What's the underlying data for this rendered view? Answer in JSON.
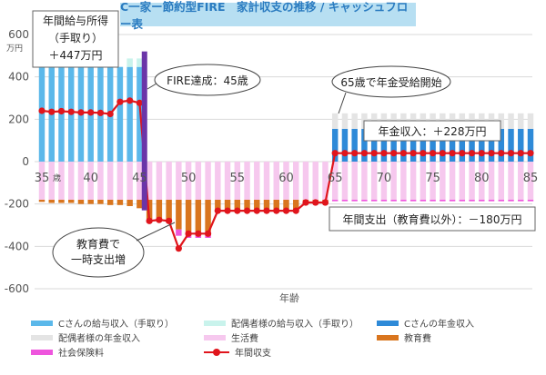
{
  "title": "C一家ー節約型FIRE　家計収支の推移 / キャッシュフロー表",
  "chart_data": {
    "type": "bar",
    "x": [
      35,
      36,
      37,
      38,
      39,
      40,
      41,
      42,
      43,
      44,
      45,
      46,
      47,
      48,
      49,
      50,
      51,
      52,
      53,
      54,
      55,
      56,
      57,
      58,
      59,
      60,
      61,
      62,
      63,
      64,
      65,
      66,
      67,
      68,
      69,
      70,
      71,
      72,
      73,
      74,
      75,
      76,
      77,
      78,
      79,
      80,
      81,
      82,
      83,
      84,
      85
    ],
    "x_ticks": [
      "35",
      "40",
      "45",
      "50",
      "55",
      "60",
      "65",
      "70",
      "75",
      "80",
      "85"
    ],
    "x_unit": "歳",
    "xlabel": "年齢",
    "y_unit": "万円",
    "ylim": [
      -600,
      600
    ],
    "y_ticks": [
      "600",
      "400",
      "200",
      "0",
      "-200",
      "-400",
      "-600"
    ],
    "grid": true,
    "legend_position": "bottom",
    "series": [
      {
        "name": "Cさんの給与収入（手取り）",
        "color": "#5bb8ea",
        "values": [
          447,
          447,
          447,
          447,
          447,
          447,
          447,
          447,
          447,
          447,
          447,
          0,
          0,
          0,
          0,
          0,
          0,
          0,
          0,
          0,
          0,
          0,
          0,
          0,
          0,
          0,
          0,
          0,
          0,
          0,
          0,
          0,
          0,
          0,
          0,
          0,
          0,
          0,
          0,
          0,
          0,
          0,
          0,
          0,
          0,
          0,
          0,
          0,
          0,
          0,
          0
        ]
      },
      {
        "name": "配偶者様の給与収入（手取り）",
        "color": "#c9f3ec",
        "values": [
          0,
          0,
          0,
          0,
          0,
          0,
          0,
          0,
          0,
          40,
          40,
          0,
          0,
          0,
          0,
          0,
          0,
          0,
          0,
          0,
          0,
          0,
          0,
          0,
          0,
          0,
          0,
          0,
          0,
          0,
          0,
          0,
          0,
          0,
          0,
          0,
          0,
          0,
          0,
          0,
          0,
          0,
          0,
          0,
          0,
          0,
          0,
          0,
          0,
          0,
          0
        ]
      },
      {
        "name": "Cさんの年金収入",
        "color": "#2e8ad8",
        "values": [
          0,
          0,
          0,
          0,
          0,
          0,
          0,
          0,
          0,
          0,
          0,
          0,
          0,
          0,
          0,
          0,
          0,
          0,
          0,
          0,
          0,
          0,
          0,
          0,
          0,
          0,
          0,
          0,
          0,
          0,
          155,
          155,
          155,
          155,
          155,
          155,
          155,
          155,
          155,
          155,
          155,
          155,
          155,
          155,
          155,
          155,
          155,
          155,
          155,
          155,
          155
        ]
      },
      {
        "name": "配偶者様の年金収入",
        "color": "#e4e4e4",
        "values": [
          0,
          0,
          0,
          0,
          0,
          0,
          0,
          0,
          0,
          0,
          0,
          0,
          0,
          0,
          0,
          0,
          0,
          0,
          0,
          0,
          0,
          0,
          0,
          0,
          0,
          0,
          0,
          0,
          0,
          0,
          73,
          73,
          73,
          73,
          73,
          73,
          73,
          73,
          73,
          73,
          73,
          73,
          73,
          73,
          73,
          73,
          73,
          73,
          73,
          73,
          73
        ]
      },
      {
        "name": "生活費",
        "color": "#f6c8ee",
        "values": [
          -180,
          -180,
          -180,
          -180,
          -180,
          -180,
          -180,
          -180,
          -180,
          -180,
          -180,
          -180,
          -180,
          -180,
          -180,
          -180,
          -180,
          -180,
          -180,
          -180,
          -180,
          -180,
          -180,
          -180,
          -180,
          -180,
          -180,
          -180,
          -180,
          -180,
          -180,
          -180,
          -180,
          -180,
          -180,
          -180,
          -180,
          -180,
          -180,
          -180,
          -180,
          -180,
          -180,
          -180,
          -180,
          -180,
          -180,
          -180,
          -180,
          -180,
          -180
        ]
      },
      {
        "name": "教育費",
        "color": "#d9751e",
        "values": [
          -10,
          -15,
          -15,
          -15,
          -20,
          -20,
          -20,
          -25,
          -25,
          -30,
          -40,
          -90,
          -90,
          -95,
          -140,
          -150,
          -150,
          -150,
          -45,
          -45,
          -45,
          -45,
          -45,
          -45,
          -45,
          -45,
          -45,
          -10,
          -10,
          -10,
          0,
          0,
          0,
          0,
          0,
          0,
          0,
          0,
          0,
          0,
          0,
          0,
          0,
          0,
          0,
          0,
          0,
          0,
          0,
          0,
          0
        ]
      },
      {
        "name": "社会保険料",
        "color": "#ee55dd",
        "values": [
          0,
          0,
          0,
          0,
          0,
          0,
          0,
          0,
          0,
          0,
          0,
          -5,
          -5,
          -10,
          -30,
          -30,
          -30,
          -30,
          -7,
          -7,
          -7,
          -7,
          -7,
          -7,
          -7,
          -7,
          -7,
          -5,
          -5,
          -5,
          -7,
          -7,
          -7,
          -7,
          -7,
          -7,
          -7,
          -7,
          -7,
          -7,
          -7,
          -7,
          -7,
          -7,
          -7,
          -7,
          -7,
          -7,
          -7,
          -7,
          -7
        ]
      },
      {
        "name": "年間収支",
        "color": "#e0151c",
        "line": true,
        "values": [
          240,
          235,
          238,
          235,
          232,
          232,
          230,
          225,
          282,
          288,
          277,
          -280,
          -275,
          -280,
          -410,
          -340,
          -340,
          -340,
          -232,
          -232,
          -232,
          -232,
          -232,
          -232,
          -232,
          -232,
          -232,
          -193,
          -193,
          -193,
          40,
          40,
          40,
          40,
          40,
          40,
          40,
          40,
          40,
          40,
          40,
          40,
          40,
          40,
          40,
          40,
          40,
          40,
          40,
          40,
          40
        ]
      }
    ],
    "annotations": {
      "salary": "年間給与所得\n（手取り）\n＋447万円",
      "fire": "FIRE達成：45歳",
      "pension_start": "65歳で年金受給開始",
      "pension_income": "年金収入：＋228万円",
      "annual_expense": "年間支出（教育費以外）：－180万円",
      "education": "教育費で\n一時支出増"
    }
  }
}
